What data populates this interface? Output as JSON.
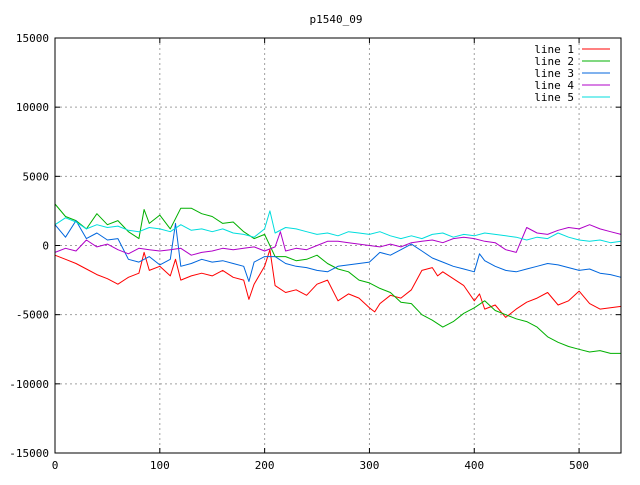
{
  "chart_data": {
    "type": "line",
    "title": "p1540_09",
    "xlabel": "",
    "ylabel": "",
    "xlim": [
      0,
      540
    ],
    "ylim": [
      -15000,
      15000
    ],
    "x_ticks": [
      0,
      100,
      200,
      300,
      400,
      500
    ],
    "y_ticks": [
      -15000,
      -10000,
      -5000,
      0,
      5000,
      10000,
      15000
    ],
    "grid": true,
    "legend_position": "top-right",
    "series": [
      {
        "name": "line 1",
        "color": "#ff0000",
        "x": [
          0,
          10,
          20,
          30,
          40,
          50,
          60,
          70,
          80,
          85,
          90,
          100,
          110,
          115,
          120,
          130,
          140,
          150,
          160,
          170,
          180,
          185,
          190,
          200,
          205,
          210,
          220,
          230,
          240,
          250,
          260,
          270,
          280,
          290,
          300,
          305,
          310,
          320,
          330,
          340,
          350,
          360,
          365,
          370,
          380,
          390,
          400,
          405,
          410,
          420,
          430,
          440,
          450,
          460,
          470,
          480,
          490,
          500,
          510,
          520,
          530,
          540
        ],
        "y": [
          -700,
          -1000,
          -1300,
          -1700,
          -2100,
          -2400,
          -2800,
          -2300,
          -2000,
          -500,
          -1800,
          -1500,
          -2200,
          -1000,
          -2500,
          -2200,
          -2000,
          -2200,
          -1800,
          -2300,
          -2500,
          -3900,
          -2800,
          -1500,
          -300,
          -2900,
          -3400,
          -3200,
          -3600,
          -2800,
          -2500,
          -4000,
          -3500,
          -3800,
          -4500,
          -4800,
          -4200,
          -3600,
          -3800,
          -3200,
          -1800,
          -1600,
          -2200,
          -1900,
          -2400,
          -2900,
          -4000,
          -3500,
          -4600,
          -4300,
          -5200,
          -4600,
          -4100,
          -3800,
          -3400,
          -4300,
          -4000,
          -3300,
          -4200,
          -4600,
          -4500,
          -4400
        ]
      },
      {
        "name": "line 2",
        "color": "#00b000",
        "x": [
          0,
          10,
          20,
          30,
          40,
          50,
          60,
          70,
          80,
          85,
          90,
          100,
          110,
          120,
          130,
          140,
          150,
          160,
          170,
          180,
          190,
          200,
          210,
          220,
          230,
          240,
          250,
          260,
          270,
          280,
          290,
          300,
          310,
          320,
          330,
          340,
          350,
          360,
          370,
          380,
          390,
          400,
          410,
          420,
          430,
          440,
          450,
          460,
          470,
          480,
          490,
          500,
          510,
          520,
          530,
          540
        ],
        "y": [
          3000,
          2100,
          1800,
          1200,
          2300,
          1500,
          1800,
          1000,
          500,
          2600,
          1600,
          2200,
          1200,
          2700,
          2700,
          2300,
          2100,
          1600,
          1700,
          1000,
          500,
          800,
          -800,
          -800,
          -1100,
          -1000,
          -700,
          -1300,
          -1700,
          -1900,
          -2500,
          -2700,
          -3100,
          -3400,
          -4100,
          -4200,
          -5000,
          -5400,
          -5900,
          -5500,
          -4900,
          -4500,
          -4000,
          -4700,
          -5000,
          -5300,
          -5500,
          -5900,
          -6600,
          -7000,
          -7300,
          -7500,
          -7700,
          -7600,
          -7800,
          -7800
        ]
      },
      {
        "name": "line 3",
        "color": "#0066dd",
        "x": [
          0,
          10,
          20,
          30,
          40,
          50,
          60,
          70,
          80,
          90,
          100,
          110,
          115,
          120,
          130,
          140,
          150,
          160,
          170,
          180,
          185,
          190,
          200,
          210,
          220,
          230,
          240,
          250,
          260,
          270,
          280,
          290,
          300,
          310,
          320,
          330,
          340,
          350,
          360,
          370,
          380,
          390,
          400,
          405,
          410,
          420,
          430,
          440,
          450,
          460,
          470,
          480,
          490,
          500,
          510,
          520,
          530,
          540
        ],
        "y": [
          1500,
          600,
          1800,
          500,
          900,
          400,
          500,
          -1000,
          -1200,
          -800,
          -1400,
          -1000,
          1600,
          -1500,
          -1300,
          -1000,
          -1200,
          -1100,
          -1300,
          -1500,
          -2600,
          -1200,
          -800,
          -800,
          -1300,
          -1500,
          -1600,
          -1800,
          -1900,
          -1500,
          -1400,
          -1300,
          -1200,
          -500,
          -700,
          -300,
          100,
          -400,
          -900,
          -1200,
          -1500,
          -1700,
          -1900,
          -600,
          -1100,
          -1500,
          -1800,
          -1900,
          -1700,
          -1500,
          -1300,
          -1400,
          -1600,
          -1800,
          -1700,
          -2000,
          -2100,
          -2300
        ]
      },
      {
        "name": "line 4",
        "color": "#b000c8",
        "x": [
          0,
          10,
          20,
          30,
          40,
          50,
          60,
          70,
          80,
          90,
          100,
          110,
          120,
          130,
          140,
          150,
          160,
          170,
          180,
          190,
          200,
          210,
          215,
          220,
          230,
          240,
          250,
          260,
          270,
          280,
          290,
          300,
          310,
          320,
          330,
          340,
          350,
          360,
          370,
          380,
          390,
          400,
          410,
          420,
          430,
          440,
          450,
          460,
          470,
          480,
          490,
          500,
          510,
          520,
          530,
          540
        ],
        "y": [
          -500,
          -200,
          -400,
          400,
          -100,
          100,
          -300,
          -600,
          -200,
          -300,
          -400,
          -300,
          -200,
          -700,
          -500,
          -400,
          -200,
          -300,
          -200,
          -100,
          -400,
          -100,
          1000,
          -400,
          -200,
          -300,
          0,
          300,
          300,
          200,
          100,
          0,
          -100,
          100,
          -100,
          200,
          300,
          400,
          200,
          500,
          600,
          500,
          300,
          200,
          -300,
          -500,
          1300,
          900,
          800,
          1100,
          1300,
          1200,
          1500,
          1200,
          1000,
          800
        ]
      },
      {
        "name": "line 5",
        "color": "#00dddd",
        "x": [
          0,
          10,
          20,
          30,
          40,
          50,
          60,
          70,
          80,
          90,
          100,
          110,
          120,
          130,
          140,
          150,
          160,
          170,
          180,
          190,
          200,
          205,
          210,
          220,
          230,
          240,
          250,
          260,
          270,
          280,
          290,
          300,
          310,
          320,
          330,
          340,
          350,
          360,
          370,
          380,
          390,
          400,
          410,
          420,
          430,
          440,
          450,
          460,
          470,
          480,
          490,
          500,
          510,
          520,
          530,
          540
        ],
        "y": [
          1500,
          2000,
          1700,
          1200,
          1500,
          1300,
          1400,
          1100,
          1000,
          1300,
          1200,
          1000,
          1500,
          1100,
          1200,
          1000,
          1200,
          900,
          800,
          600,
          1200,
          2500,
          900,
          1300,
          1200,
          1000,
          800,
          900,
          700,
          1000,
          900,
          800,
          1000,
          700,
          500,
          700,
          500,
          800,
          900,
          600,
          800,
          700,
          900,
          800,
          700,
          600,
          400,
          600,
          500,
          900,
          600,
          400,
          300,
          400,
          200,
          300
        ]
      }
    ]
  }
}
